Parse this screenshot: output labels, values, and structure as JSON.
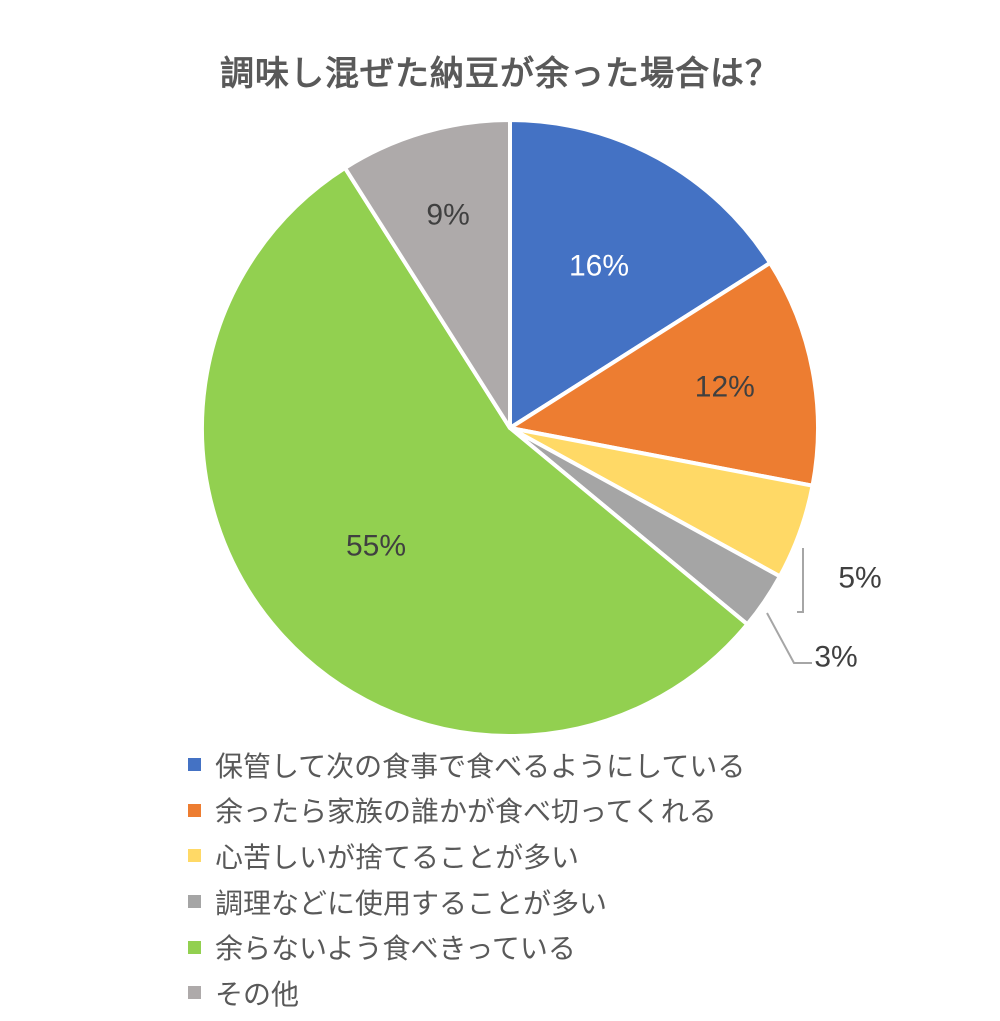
{
  "chart_data": {
    "type": "pie",
    "title": "調味し混ぜた納豆が余った場合は？",
    "categories": [
      "保管して次の食事で食べるようにしている",
      "余ったら家族の誰かが食べ切ってくれる",
      "心苦しいが捨てることが多い",
      "調理などに使用することが多い",
      "余らないよう食べきっている",
      "その他"
    ],
    "values": [
      16,
      12,
      5,
      3,
      55,
      9
    ],
    "data_labels": [
      "16%",
      "12%",
      "5%",
      "3%",
      "55%",
      "9%"
    ],
    "colors": [
      "#4472C4",
      "#ED7D31",
      "#FFD966",
      "#A5A5A5",
      "#92D050",
      "#AEAAAA"
    ],
    "label_colors": [
      "#ffffff",
      "#404040",
      "#404040",
      "#404040",
      "#404040",
      "#404040"
    ],
    "legend_position": "bottom",
    "start_angle": "top",
    "direction": "clockwise"
  }
}
